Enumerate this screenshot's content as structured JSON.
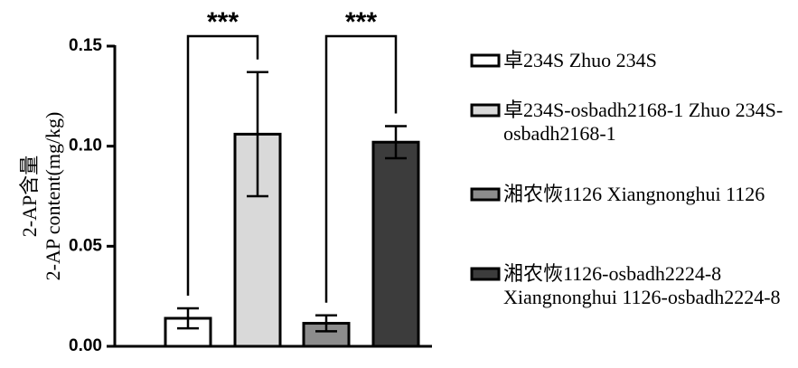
{
  "chart_data": {
    "type": "bar",
    "ylabel": [
      "2-AP含量",
      "2-AP content(mg/kg)"
    ],
    "series": [
      {
        "name": "卓234S Zhuo 234S",
        "color": "#ffffff",
        "values": [
          0.014
        ],
        "errors": [
          0.005
        ]
      },
      {
        "name": "卓234S-osbadh2168-1 Zhuo 234S-osbadh2168-1",
        "color": "#d9d9d9",
        "values": [
          0.106
        ],
        "errors": [
          0.031
        ]
      },
      {
        "name": "湘农恢1126 Xiangnonghui 1126",
        "color": "#8c8c8c",
        "values": [
          0.0115
        ],
        "errors": [
          0.004
        ]
      },
      {
        "name": "湘农恢1126-osbadh2224-8 Xiangnonghui 1126-osbadh2224-8",
        "color": "#3c3c3c",
        "values": [
          0.102
        ],
        "errors": [
          0.008
        ]
      }
    ],
    "annotations": [
      "***",
      "***"
    ],
    "ylim": [
      0,
      0.15
    ],
    "yticks": [
      {
        "value": 0,
        "label": "0.00"
      },
      {
        "value": 0.05,
        "label": "0.05"
      },
      {
        "value": 0.1,
        "label": "0.10"
      },
      {
        "value": 0.15,
        "label": "0.15"
      }
    ]
  }
}
